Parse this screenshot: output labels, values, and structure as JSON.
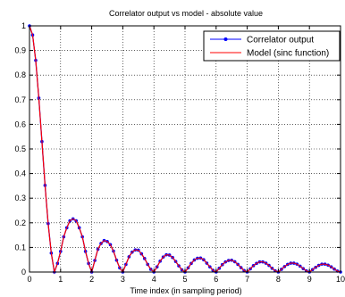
{
  "chart_data": {
    "type": "line",
    "title": "Correlator output vs model - absolute value",
    "xlabel": "Time index (in sampling period)",
    "ylabel": "",
    "xlim": [
      0,
      10
    ],
    "ylim": [
      0,
      1
    ],
    "xticks": [
      "0",
      "1",
      "2",
      "3",
      "4",
      "5",
      "6",
      "7",
      "8",
      "9",
      "10"
    ],
    "yticks": [
      "0",
      "0.1",
      "0.2",
      "0.3",
      "0.4",
      "0.5",
      "0.6",
      "0.7",
      "0.8",
      "0.9",
      "1"
    ],
    "grid": true,
    "legend_position": "top-right",
    "x": [
      0,
      0.1,
      0.2,
      0.3,
      0.4,
      0.5,
      0.6,
      0.7,
      0.8,
      0.9,
      1.0,
      1.1,
      1.2,
      1.3,
      1.4,
      1.5,
      1.6,
      1.7,
      1.8,
      1.9,
      2.0,
      2.1,
      2.2,
      2.3,
      2.4,
      2.5,
      2.6,
      2.7,
      2.8,
      2.9,
      3.0,
      3.1,
      3.2,
      3.3,
      3.4,
      3.5,
      3.6,
      3.7,
      3.8,
      3.9,
      4.0,
      4.1,
      4.2,
      4.3,
      4.4,
      4.5,
      4.6,
      4.7,
      4.8,
      4.9,
      5.0,
      5.1,
      5.2,
      5.3,
      5.4,
      5.5,
      5.6,
      5.7,
      5.8,
      5.9,
      6.0,
      6.1,
      6.2,
      6.3,
      6.4,
      6.5,
      6.6,
      6.7,
      6.8,
      6.9,
      7.0,
      7.1,
      7.2,
      7.3,
      7.4,
      7.5,
      7.6,
      7.7,
      7.8,
      7.9,
      8.0,
      8.1,
      8.2,
      8.3,
      8.4,
      8.5,
      8.6,
      8.7,
      8.8,
      8.9,
      9.0,
      9.1,
      9.2,
      9.3,
      9.4,
      9.5,
      9.6,
      9.7,
      9.8,
      9.9,
      10.0
    ],
    "series": [
      {
        "name": "Correlator output",
        "color": "#0000ff",
        "markers": true,
        "values": [
          1.0,
          0.963,
          0.86,
          0.707,
          0.53,
          0.352,
          0.197,
          0.077,
          0.0,
          0.035,
          0.084,
          0.143,
          0.18,
          0.208,
          0.216,
          0.208,
          0.18,
          0.143,
          0.084,
          0.035,
          0.0,
          0.047,
          0.093,
          0.116,
          0.128,
          0.124,
          0.111,
          0.085,
          0.048,
          0.017,
          0.0,
          0.031,
          0.062,
          0.081,
          0.09,
          0.089,
          0.074,
          0.055,
          0.031,
          0.011,
          0.0,
          0.021,
          0.044,
          0.061,
          0.07,
          0.069,
          0.059,
          0.043,
          0.025,
          0.009,
          0.0,
          0.017,
          0.035,
          0.049,
          0.056,
          0.057,
          0.05,
          0.036,
          0.021,
          0.007,
          0.0,
          0.015,
          0.03,
          0.041,
          0.047,
          0.048,
          0.042,
          0.031,
          0.018,
          0.006,
          0.0,
          0.013,
          0.026,
          0.035,
          0.041,
          0.041,
          0.036,
          0.027,
          0.015,
          0.005,
          0.0,
          0.011,
          0.022,
          0.031,
          0.036,
          0.036,
          0.032,
          0.024,
          0.014,
          0.005,
          0.0,
          0.01,
          0.019,
          0.027,
          0.032,
          0.032,
          0.028,
          0.021,
          0.012,
          0.004,
          0.0
        ]
      },
      {
        "name": "Model (sinc function)",
        "color": "#ff0000",
        "markers": false,
        "values": [
          1.0,
          0.963,
          0.86,
          0.707,
          0.53,
          0.352,
          0.197,
          0.077,
          0.0,
          0.035,
          0.084,
          0.143,
          0.18,
          0.208,
          0.216,
          0.208,
          0.18,
          0.143,
          0.084,
          0.035,
          0.0,
          0.047,
          0.093,
          0.116,
          0.128,
          0.124,
          0.111,
          0.085,
          0.048,
          0.017,
          0.0,
          0.031,
          0.062,
          0.081,
          0.09,
          0.089,
          0.074,
          0.055,
          0.031,
          0.011,
          0.0,
          0.021,
          0.044,
          0.061,
          0.07,
          0.069,
          0.059,
          0.043,
          0.025,
          0.009,
          0.0,
          0.017,
          0.035,
          0.049,
          0.056,
          0.057,
          0.05,
          0.036,
          0.021,
          0.007,
          0.0,
          0.015,
          0.03,
          0.041,
          0.047,
          0.048,
          0.042,
          0.031,
          0.018,
          0.006,
          0.0,
          0.013,
          0.026,
          0.035,
          0.041,
          0.041,
          0.036,
          0.027,
          0.015,
          0.005,
          0.0,
          0.011,
          0.022,
          0.031,
          0.036,
          0.036,
          0.032,
          0.024,
          0.014,
          0.005,
          0.0,
          0.01,
          0.019,
          0.027,
          0.032,
          0.032,
          0.028,
          0.021,
          0.012,
          0.004,
          0.0
        ]
      }
    ]
  }
}
